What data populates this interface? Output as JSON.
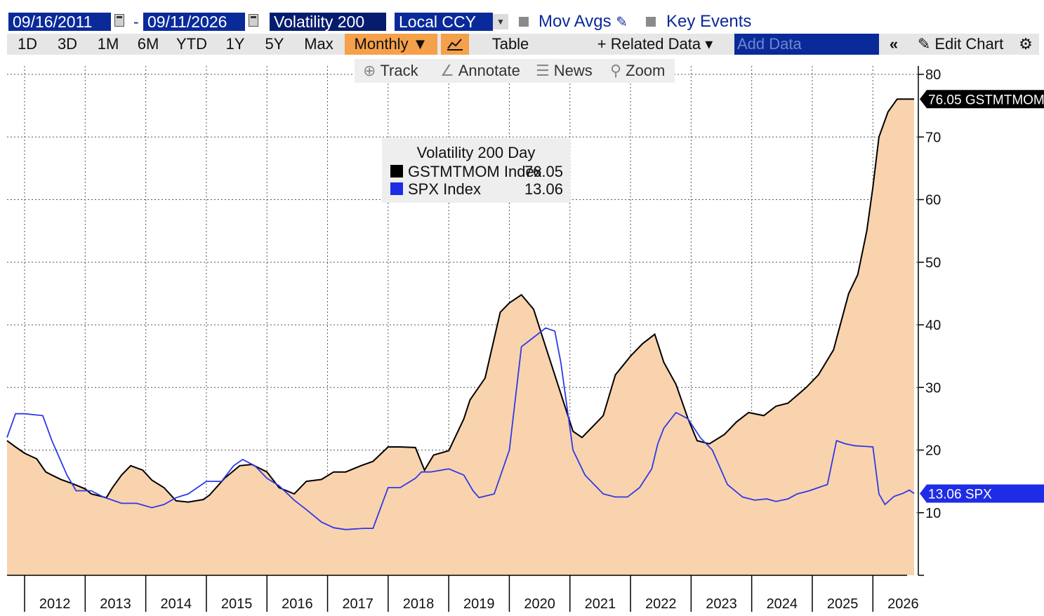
{
  "header": {
    "start_date": "09/16/2011",
    "date_separator": "-",
    "end_date": "09/11/2026",
    "study": "Volatility 200",
    "currency": "Local CCY",
    "mov_avgs": "Mov Avgs",
    "key_events": "Key Events"
  },
  "toolbar": {
    "ranges": [
      "1D",
      "3D",
      "1M",
      "6M",
      "YTD",
      "1Y",
      "5Y",
      "Max"
    ],
    "period": "Monthly ▼",
    "table": "Table",
    "related_data": "+ Related Data ▾",
    "add_data_placeholder": "Add Data",
    "collapse": "«",
    "edit_chart": "Edit Chart",
    "gear": "⚙"
  },
  "tools": {
    "track": "Track",
    "annotate": "Annotate",
    "news": "News",
    "zoom": "Zoom"
  },
  "legend": {
    "title": "Volatility 200 Day",
    "rows": [
      {
        "name": "GSTMTMOM Index",
        "value": "76.05",
        "color": "#000000"
      },
      {
        "name": "SPX Index",
        "value": "13.06",
        "color": "#1f2ce6"
      }
    ]
  },
  "colors": {
    "area_fill": "#f9d3ad",
    "black_series": "#000000",
    "blue_series": "#2d3ae8",
    "highlight_blue": "#0a2a9a"
  },
  "chart_data": {
    "type": "area",
    "x_unit": "year",
    "xlim": [
      2011.71,
      2026.75
    ],
    "ylim": [
      0,
      80
    ],
    "yticks": [
      "80",
      "70",
      "60",
      "50",
      "40",
      "30",
      "20",
      "10"
    ],
    "xticks": [
      "2012",
      "2013",
      "2014",
      "2015",
      "2016",
      "2017",
      "2018",
      "2019",
      "2020",
      "2021",
      "2022",
      "2023",
      "2024",
      "2025",
      "2026"
    ],
    "grid": true,
    "legend_position": "top-center",
    "last_value_labels": [
      {
        "text": "76.05 GSTMTMOM",
        "value": 76.05,
        "series": "GSTMTMOM Index"
      },
      {
        "text": "13.06 SPX",
        "value": 13.06,
        "series": "SPX Index"
      }
    ],
    "series": [
      {
        "name": "GSTMTMOM Index",
        "style": "area",
        "x": [
          2011.71,
          2011.85,
          2012.0,
          2012.2,
          2012.35,
          2012.45,
          2012.6,
          2012.8,
          2013.0,
          2013.1,
          2013.35,
          2013.45,
          2013.6,
          2013.75,
          2013.95,
          2014.1,
          2014.3,
          2014.5,
          2014.7,
          2014.95,
          2015.05,
          2015.3,
          2015.55,
          2015.75,
          2016.0,
          2016.2,
          2016.45,
          2016.65,
          2016.9,
          2017.1,
          2017.3,
          2017.55,
          2017.75,
          2018.0,
          2018.2,
          2018.45,
          2018.6,
          2018.75,
          2019.0,
          2019.25,
          2019.35,
          2019.6,
          2019.85,
          2020.0,
          2020.2,
          2020.4,
          2020.55,
          2020.75,
          2021.05,
          2021.2,
          2021.4,
          2021.55,
          2021.75,
          2022.0,
          2022.2,
          2022.4,
          2022.55,
          2022.75,
          2022.95,
          2023.1,
          2023.3,
          2023.55,
          2023.75,
          2023.95,
          2024.2,
          2024.4,
          2024.6,
          2024.9,
          2025.1,
          2025.35,
          2025.6,
          2025.75,
          2025.9,
          2026.0,
          2026.1,
          2026.25,
          2026.4,
          2026.5,
          2026.6,
          2026.68
        ],
        "values": [
          21.5,
          20.5,
          19.5,
          18.6,
          16.5,
          16.0,
          15.3,
          14.6,
          13.8,
          13.0,
          12.4,
          14.0,
          16.0,
          17.5,
          16.8,
          15.2,
          14.0,
          11.9,
          11.7,
          12.1,
          12.8,
          15.5,
          17.5,
          17.7,
          16.5,
          14.0,
          13.0,
          15.0,
          15.3,
          16.5,
          16.5,
          17.5,
          18.2,
          20.5,
          20.5,
          20.4,
          16.8,
          19.2,
          19.9,
          25.0,
          28.0,
          31.5,
          42.0,
          43.5,
          44.8,
          42.5,
          38.0,
          32.0,
          23.0,
          22.0,
          24.0,
          25.5,
          32.0,
          35.0,
          37.0,
          38.5,
          34.0,
          30.5,
          25.0,
          21.5,
          21.0,
          22.5,
          24.5,
          26.0,
          25.5,
          27.0,
          27.5,
          30.0,
          32.0,
          36.0,
          45.0,
          48.0,
          55.0,
          62.0,
          70.0,
          74.0,
          76.05,
          76.05,
          76.05,
          76.05
        ]
      },
      {
        "name": "SPX Index",
        "style": "line",
        "x": [
          2011.71,
          2011.85,
          2012.0,
          2012.3,
          2012.45,
          2012.7,
          2012.85,
          2013.1,
          2013.3,
          2013.45,
          2013.6,
          2013.85,
          2014.1,
          2014.3,
          2014.5,
          2014.7,
          2015.0,
          2015.25,
          2015.45,
          2015.6,
          2015.8,
          2016.0,
          2016.2,
          2016.45,
          2016.65,
          2016.9,
          2017.1,
          2017.3,
          2017.6,
          2017.75,
          2018.0,
          2018.2,
          2018.45,
          2018.55,
          2018.7,
          2019.0,
          2019.25,
          2019.4,
          2019.5,
          2019.75,
          2020.0,
          2020.2,
          2020.4,
          2020.6,
          2020.75,
          2020.85,
          2021.05,
          2021.25,
          2021.55,
          2021.75,
          2021.95,
          2022.15,
          2022.35,
          2022.45,
          2022.55,
          2022.75,
          2022.95,
          2023.15,
          2023.35,
          2023.6,
          2023.85,
          2024.05,
          2024.25,
          2024.4,
          2024.6,
          2024.75,
          2024.95,
          2025.1,
          2025.25,
          2025.4,
          2025.55,
          2025.7,
          2025.85,
          2026.0,
          2026.1,
          2026.2,
          2026.35,
          2026.5,
          2026.6,
          2026.68
        ],
        "values": [
          22.0,
          25.8,
          25.8,
          25.5,
          21.5,
          16.0,
          13.5,
          13.5,
          12.5,
          12.0,
          11.5,
          11.5,
          10.8,
          11.3,
          12.4,
          13.0,
          15.0,
          15.0,
          17.5,
          18.5,
          17.5,
          15.5,
          14.3,
          12.0,
          10.5,
          8.5,
          7.6,
          7.3,
          7.5,
          7.5,
          14.0,
          14.0,
          15.5,
          16.5,
          16.5,
          17.0,
          16.0,
          13.5,
          12.4,
          13.0,
          20.0,
          36.5,
          38.0,
          39.5,
          39.0,
          34.0,
          20.0,
          16.0,
          13.0,
          12.5,
          12.5,
          14.0,
          17.0,
          21.0,
          23.5,
          26.0,
          25.0,
          22.0,
          20.0,
          14.5,
          12.5,
          12.0,
          12.2,
          11.8,
          12.2,
          13.0,
          13.5,
          14.0,
          14.5,
          21.5,
          21.0,
          20.7,
          20.6,
          20.5,
          13.0,
          11.3,
          12.6,
          13.1,
          13.6,
          13.06
        ]
      }
    ]
  }
}
